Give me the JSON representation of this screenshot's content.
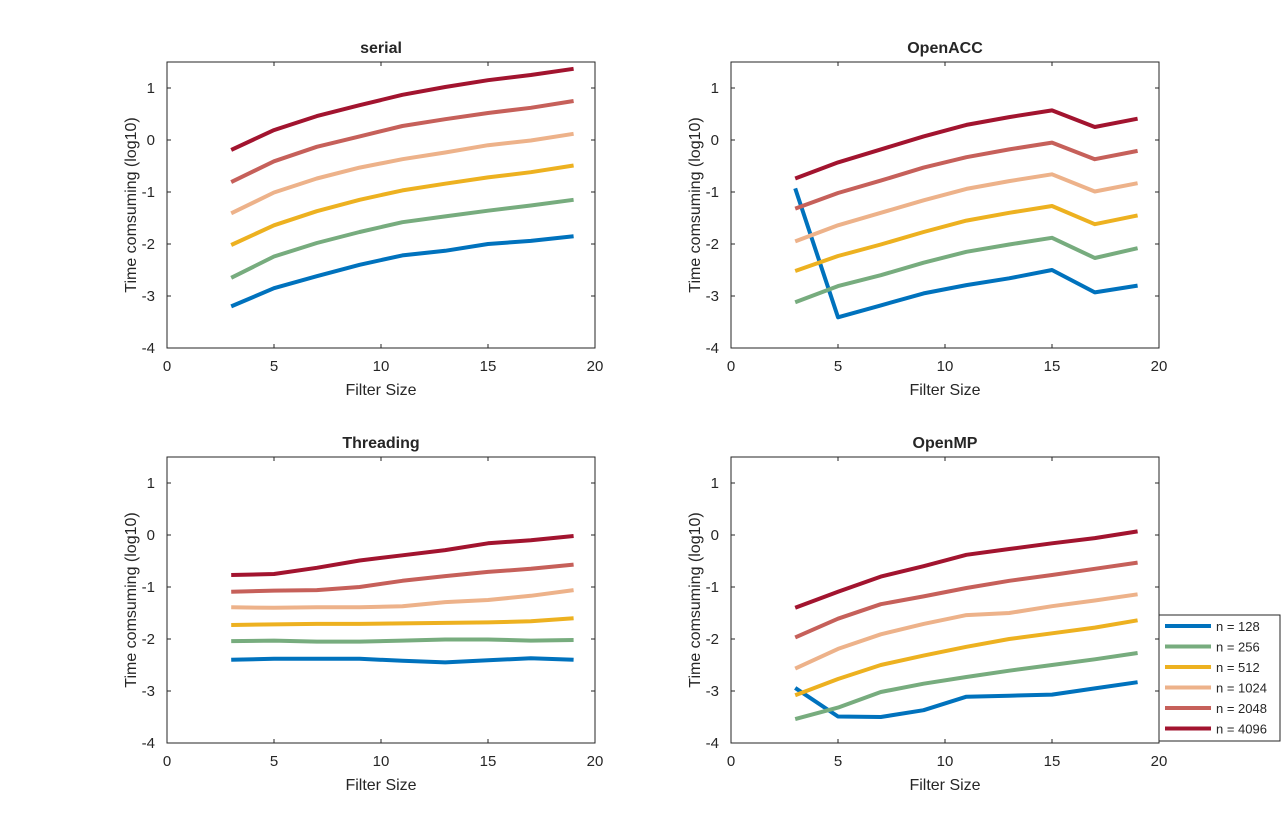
{
  "chart_data": [
    {
      "type": "line",
      "title": "serial",
      "xlabel": "Filter Size",
      "ylabel": "Time comsuming (log10)",
      "xlim": [
        0,
        20
      ],
      "ylim": [
        -4,
        1.5
      ],
      "xticks": [
        0,
        5,
        10,
        15,
        20
      ],
      "yticks": [
        -4,
        -3,
        -2,
        -1,
        0,
        1
      ],
      "x": [
        3,
        5,
        7,
        9,
        11,
        13,
        15,
        17,
        19
      ],
      "series": [
        {
          "name": "n = 128",
          "values": [
            -3.2,
            -2.85,
            -2.62,
            -2.4,
            -2.22,
            -2.13,
            -2.0,
            -1.94,
            -1.85
          ]
        },
        {
          "name": "n = 256",
          "values": [
            -2.65,
            -2.24,
            -1.98,
            -1.77,
            -1.58,
            -1.47,
            -1.36,
            -1.26,
            -1.15
          ]
        },
        {
          "name": "n = 512",
          "values": [
            -2.02,
            -1.64,
            -1.37,
            -1.15,
            -0.97,
            -0.84,
            -0.72,
            -0.62,
            -0.49
          ]
        },
        {
          "name": "n = 1024",
          "values": [
            -1.41,
            -1.01,
            -0.74,
            -0.53,
            -0.37,
            -0.24,
            -0.1,
            -0.01,
            0.12
          ]
        },
        {
          "name": "n = 2048",
          "values": [
            -0.81,
            -0.41,
            -0.13,
            0.07,
            0.27,
            0.4,
            0.52,
            0.62,
            0.75
          ]
        },
        {
          "name": "n = 4096",
          "values": [
            -0.19,
            0.19,
            0.46,
            0.67,
            0.87,
            1.02,
            1.15,
            1.25,
            1.37
          ]
        }
      ]
    },
    {
      "type": "line",
      "title": "OpenACC",
      "xlabel": "Filter Size",
      "ylabel": "Time comsuming (log10)",
      "xlim": [
        0,
        20
      ],
      "ylim": [
        -4,
        1.5
      ],
      "xticks": [
        0,
        5,
        10,
        15,
        20
      ],
      "yticks": [
        -4,
        -3,
        -2,
        -1,
        0,
        1
      ],
      "x": [
        3,
        5,
        7,
        9,
        11,
        13,
        15,
        17,
        19
      ],
      "series": [
        {
          "name": "n = 128",
          "values": [
            -0.93,
            -3.41,
            -3.18,
            -2.95,
            -2.79,
            -2.66,
            -2.5,
            -2.93,
            -2.8
          ]
        },
        {
          "name": "n = 256",
          "values": [
            -3.12,
            -2.81,
            -2.6,
            -2.36,
            -2.15,
            -2.01,
            -1.88,
            -2.27,
            -2.08
          ]
        },
        {
          "name": "n = 512",
          "values": [
            -2.52,
            -2.23,
            -2.01,
            -1.77,
            -1.55,
            -1.4,
            -1.27,
            -1.62,
            -1.45
          ]
        },
        {
          "name": "n = 1024",
          "values": [
            -1.95,
            -1.64,
            -1.4,
            -1.16,
            -0.94,
            -0.79,
            -0.66,
            -0.99,
            -0.83
          ]
        },
        {
          "name": "n = 2048",
          "values": [
            -1.32,
            -1.02,
            -0.78,
            -0.53,
            -0.33,
            -0.18,
            -0.05,
            -0.37,
            -0.21
          ]
        },
        {
          "name": "n = 4096",
          "values": [
            -0.74,
            -0.43,
            -0.18,
            0.07,
            0.29,
            0.44,
            0.57,
            0.25,
            0.41
          ]
        }
      ]
    },
    {
      "type": "line",
      "title": "Threading",
      "xlabel": "Filter Size",
      "ylabel": "Time comsuming (log10)",
      "xlim": [
        0,
        20
      ],
      "ylim": [
        -4,
        1.5
      ],
      "xticks": [
        0,
        5,
        10,
        15,
        20
      ],
      "yticks": [
        -4,
        -3,
        -2,
        -1,
        0,
        1
      ],
      "x": [
        3,
        5,
        7,
        9,
        11,
        13,
        15,
        17,
        19
      ],
      "series": [
        {
          "name": "n = 128",
          "values": [
            -2.4,
            -2.38,
            -2.38,
            -2.38,
            -2.42,
            -2.45,
            -2.41,
            -2.37,
            -2.4
          ]
        },
        {
          "name": "n = 256",
          "values": [
            -2.04,
            -2.03,
            -2.05,
            -2.05,
            -2.03,
            -2.01,
            -2.01,
            -2.03,
            -2.02
          ]
        },
        {
          "name": "n = 512",
          "values": [
            -1.73,
            -1.72,
            -1.71,
            -1.71,
            -1.7,
            -1.69,
            -1.68,
            -1.66,
            -1.6
          ]
        },
        {
          "name": "n = 1024",
          "values": [
            -1.39,
            -1.4,
            -1.39,
            -1.39,
            -1.37,
            -1.29,
            -1.25,
            -1.17,
            -1.06
          ]
        },
        {
          "name": "n = 2048",
          "values": [
            -1.09,
            -1.07,
            -1.06,
            -1.0,
            -0.88,
            -0.79,
            -0.71,
            -0.65,
            -0.57
          ]
        },
        {
          "name": "n = 4096",
          "values": [
            -0.77,
            -0.75,
            -0.63,
            -0.49,
            -0.39,
            -0.29,
            -0.16,
            -0.1,
            -0.02
          ]
        }
      ]
    },
    {
      "type": "line",
      "title": "OpenMP",
      "xlabel": "Filter Size",
      "ylabel": "Time comsuming (log10)",
      "xlim": [
        0,
        20
      ],
      "ylim": [
        -4,
        1.5
      ],
      "xticks": [
        0,
        5,
        10,
        15,
        20
      ],
      "yticks": [
        -4,
        -3,
        -2,
        -1,
        0,
        1
      ],
      "x": [
        3,
        5,
        7,
        9,
        11,
        13,
        15,
        17,
        19
      ],
      "series": [
        {
          "name": "n = 128",
          "values": [
            -2.94,
            -3.49,
            -3.5,
            -3.37,
            -3.11,
            -3.09,
            -3.07,
            -2.95,
            -2.83
          ]
        },
        {
          "name": "n = 256",
          "values": [
            -3.54,
            -3.32,
            -3.02,
            -2.86,
            -2.73,
            -2.61,
            -2.5,
            -2.39,
            -2.27
          ]
        },
        {
          "name": "n = 512",
          "values": [
            -3.08,
            -2.77,
            -2.5,
            -2.32,
            -2.15,
            -2.0,
            -1.89,
            -1.78,
            -1.64
          ]
        },
        {
          "name": "n = 1024",
          "values": [
            -2.57,
            -2.19,
            -1.91,
            -1.71,
            -1.54,
            -1.5,
            -1.37,
            -1.26,
            -1.14
          ]
        },
        {
          "name": "n = 2048",
          "values": [
            -1.97,
            -1.61,
            -1.33,
            -1.18,
            -1.02,
            -0.88,
            -0.77,
            -0.65,
            -0.53
          ]
        },
        {
          "name": "n = 4096",
          "values": [
            -1.4,
            -1.09,
            -0.8,
            -0.6,
            -0.38,
            -0.27,
            -0.16,
            -0.06,
            0.07
          ]
        }
      ]
    }
  ],
  "legend": {
    "placement": "right, beside OpenMP panel",
    "entries": [
      "n = 128",
      "n = 256",
      "n = 512",
      "n = 1024",
      "n = 2048",
      "n = 4096"
    ]
  },
  "series_colors": [
    "#0072BD",
    "#77AC7E",
    "#EDB120",
    "#EDB28A",
    "#C6605A",
    "#A2142F"
  ]
}
